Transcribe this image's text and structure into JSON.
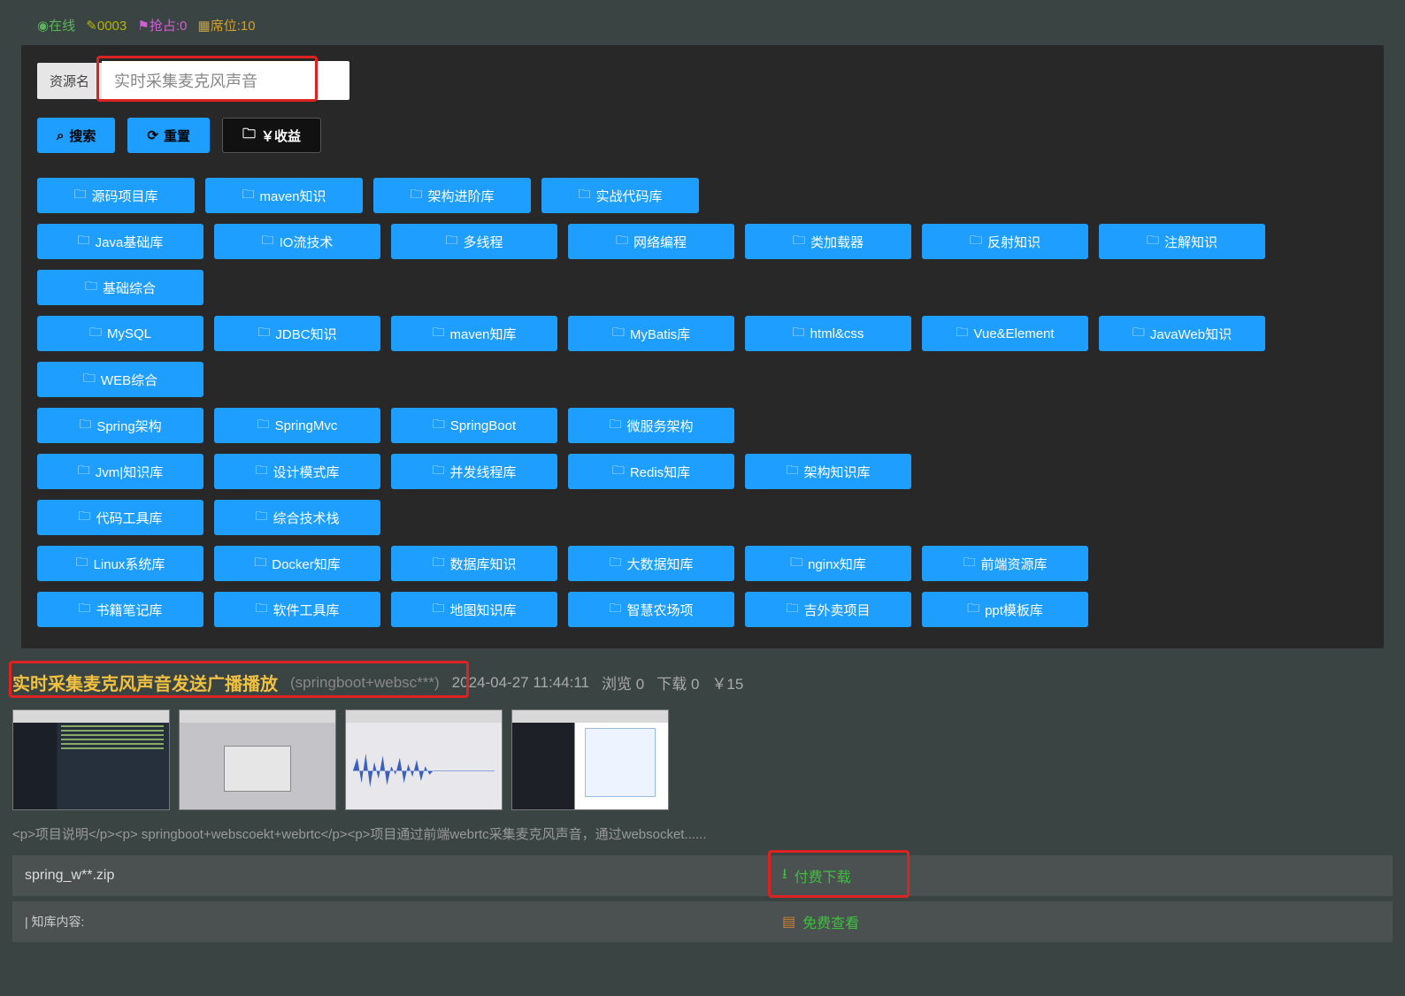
{
  "status": {
    "online_label": "在线",
    "edit_count": "0003",
    "flag_label": "抢占:0",
    "seat_label": "席位:10"
  },
  "search": {
    "label": "资源名",
    "value": "实时采集麦克风声音"
  },
  "actions": {
    "search": "搜索",
    "reset": "重置",
    "income": "￥收益"
  },
  "tag_rows": [
    [
      "源码项目库",
      "maven知识",
      "架构进阶库",
      "实战代码库"
    ],
    [
      "Java基础库",
      "IO流技术",
      "多线程",
      "网络编程",
      "类加载器",
      "反射知识",
      "注解知识",
      "基础综合"
    ],
    [
      "MySQL",
      "JDBC知识",
      "maven知库",
      "MyBatis库",
      "html&css",
      "Vue&Element",
      "JavaWeb知识",
      "WEB综合"
    ],
    [
      "Spring架构",
      "SpringMvc",
      "SpringBoot",
      "微服务架构"
    ],
    [
      "Jvm|知识库",
      "设计模式库",
      "并发线程库",
      "Redis知库",
      "架构知识库"
    ],
    [
      "代码工具库",
      "综合技术栈"
    ],
    [
      "Linux系统库",
      "Docker知库",
      "数据库知识",
      "大数据知库",
      "nginx知库",
      "前端资源库"
    ],
    [
      "书籍笔记库",
      "软件工具库",
      "地图知识库",
      "智慧农场项",
      "吉外卖项目",
      "ppt模板库"
    ]
  ],
  "result": {
    "title": "实时采集麦克风声音发送广播播放",
    "subtitle": "(springboot+websc***)",
    "datetime": "2024-04-27 11:44:11",
    "views_label": "浏览",
    "views": "0",
    "downloads_label": "下载",
    "downloads": "0",
    "price": "￥15",
    "description": "<p>项目说明</p><p> springboot+webscoekt+webrtc</p><p>项目通过前端webrtc采集麦克风声音，通过websocket......",
    "filename": "spring_w**.zip",
    "paid_download": "付费下载",
    "kb_label": "| 知库内容:",
    "free_view": "免费查看"
  },
  "colors": {
    "accent": "#1e9fff",
    "highlight": "#f0c040",
    "success": "#3fbf3f",
    "alert_border": "#d22"
  }
}
